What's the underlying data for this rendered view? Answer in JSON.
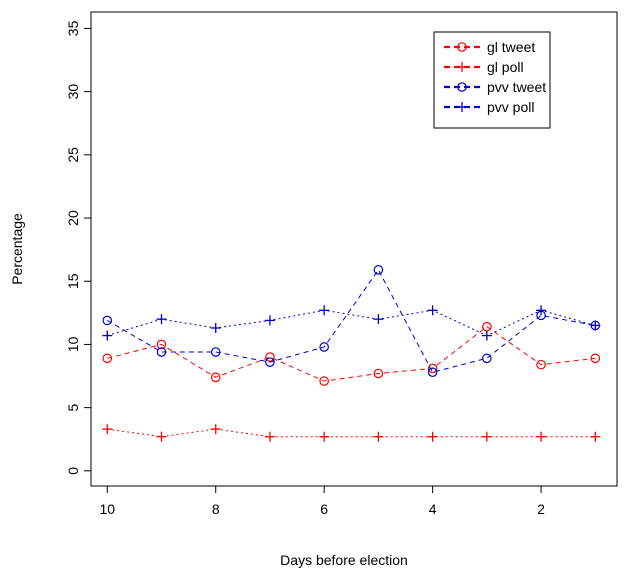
{
  "chart_data": {
    "type": "line",
    "xlabel": "Days before election",
    "ylabel": "Percentage",
    "xlim": [
      10.3,
      0.6
    ],
    "ylim": [
      -1.2,
      36.3
    ],
    "x_ticks": [
      10,
      8,
      6,
      4,
      2
    ],
    "x_tick_labels": [
      "10",
      "8",
      "6",
      "4",
      "2"
    ],
    "y_ticks": [
      0,
      5,
      10,
      15,
      20,
      25,
      30,
      35
    ],
    "y_tick_labels": [
      "0",
      "5",
      "10",
      "15",
      "20",
      "25",
      "30",
      "35"
    ],
    "x": [
      10,
      9,
      8,
      7,
      6,
      5,
      4,
      3,
      2,
      1
    ],
    "grid": false,
    "legend_position": "top-right",
    "series": [
      {
        "name": "gl tweet",
        "color": "#ff0000",
        "marker": "circle",
        "line_style": "dashed",
        "values": [
          8.9,
          10.0,
          7.4,
          9.0,
          7.1,
          7.7,
          8.1,
          11.4,
          8.4,
          8.9
        ]
      },
      {
        "name": "gl poll",
        "color": "#ff0000",
        "marker": "plus",
        "line_style": "dotted",
        "values": [
          3.3,
          2.7,
          3.3,
          2.7,
          2.7,
          2.7,
          2.7,
          2.7,
          2.7,
          2.7
        ]
      },
      {
        "name": "pvv tweet",
        "color": "#0000cc",
        "marker": "circle",
        "line_style": "dashed",
        "values": [
          11.9,
          9.4,
          9.4,
          8.6,
          9.8,
          15.9,
          7.8,
          8.9,
          12.3,
          11.5
        ]
      },
      {
        "name": "pvv poll",
        "color": "#0000cc",
        "marker": "plus",
        "line_style": "dotted",
        "values": [
          10.7,
          12.0,
          11.3,
          11.9,
          12.7,
          12.0,
          12.7,
          10.7,
          12.7,
          11.5
        ]
      }
    ]
  }
}
